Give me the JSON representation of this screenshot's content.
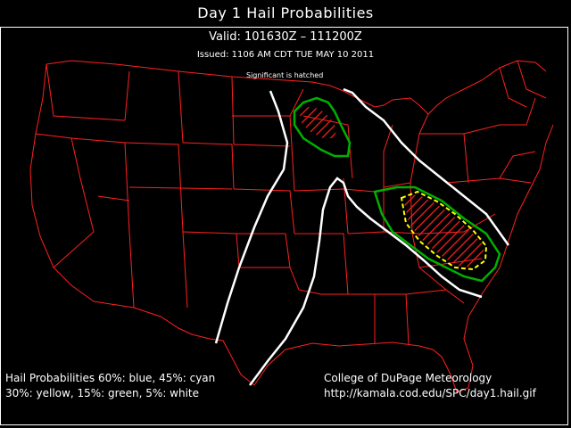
{
  "title": "Day 1 Hail Probabilities",
  "valid": "Valid: 101630Z – 111200Z",
  "issued": "Issued: 1106 AM CDT TUE MAY 10 2011",
  "note": "Significant is hatched",
  "legend": {
    "line1": "Hail Probabilities 60%: blue, 45%: cyan",
    "line2": "30%: yellow, 15%: green, 5%: white"
  },
  "credit": {
    "line1": "College of DuPage Meteorology",
    "line2": "http://kamala.cod.edu/SPC/day1.hail.gif"
  },
  "colors": {
    "background": "#000000",
    "borders": "#ff2020",
    "prob_30": "#ffff00",
    "prob_15": "#00b000",
    "prob_5": "#ffffff",
    "hatch": "#ff2020"
  }
}
